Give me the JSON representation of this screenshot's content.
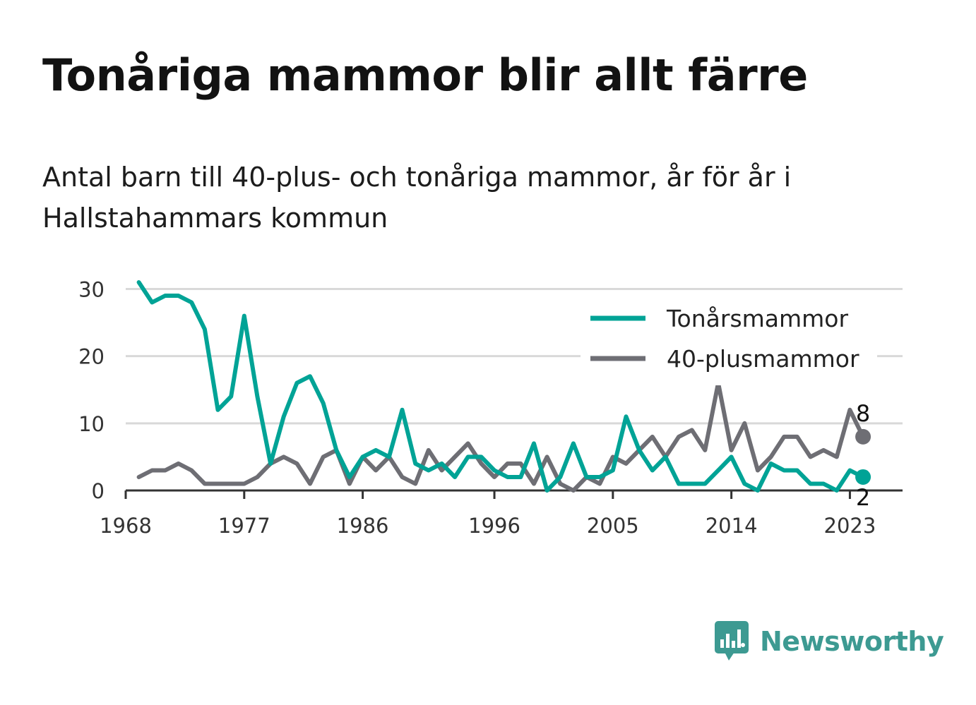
{
  "title": "Tonåriga mammor blir allt färre",
  "subtitle": "Antal barn till 40-plus- och tonåriga mammor, år för år i Hallstahammars kommun",
  "brand": {
    "name": "Newsworthy",
    "icon": "newsworthy-logo-icon",
    "color": "#3d9a92"
  },
  "colors": {
    "teen": "#00a396",
    "forty": "#6e6e74",
    "grid": "#d9d9d9",
    "axis": "#333333"
  },
  "chart_data": {
    "type": "line",
    "xlabel": "",
    "ylabel": "",
    "x": [
      1969,
      1970,
      1971,
      1972,
      1973,
      1974,
      1975,
      1976,
      1977,
      1978,
      1979,
      1980,
      1981,
      1982,
      1983,
      1984,
      1985,
      1986,
      1987,
      1988,
      1989,
      1990,
      1991,
      1992,
      1993,
      1994,
      1995,
      1996,
      1997,
      1998,
      1999,
      2000,
      2001,
      2002,
      2003,
      2004,
      2005,
      2006,
      2007,
      2008,
      2009,
      2010,
      2011,
      2012,
      2013,
      2014,
      2015,
      2016,
      2017,
      2018,
      2019,
      2020,
      2021,
      2022,
      2023,
      2024
    ],
    "xticks": [
      "1968",
      "1977",
      "1986",
      "1996",
      "2005",
      "2014",
      "2023"
    ],
    "xtick_values": [
      1968,
      1977,
      1986,
      1996,
      2005,
      2014,
      2023
    ],
    "xlim": [
      1968,
      2027
    ],
    "yticks": [
      "0",
      "10",
      "20",
      "30"
    ],
    "ytick_values": [
      0,
      10,
      20,
      30
    ],
    "ylim": [
      0,
      31
    ],
    "grid": true,
    "legend_position": "top-right",
    "series": [
      {
        "name": "Tonårsmammor",
        "color": "#00a396",
        "values": [
          31,
          28,
          29,
          29,
          28,
          24,
          12,
          14,
          26,
          14,
          4,
          11,
          16,
          17,
          13,
          6,
          2,
          5,
          6,
          5,
          12,
          4,
          3,
          4,
          2,
          5,
          5,
          3,
          2,
          2,
          7,
          0,
          2,
          7,
          2,
          2,
          3,
          11,
          6,
          3,
          5,
          1,
          1,
          1,
          3,
          5,
          1,
          0,
          4,
          3,
          3,
          1,
          1,
          0,
          3,
          2
        ],
        "end_label": "2"
      },
      {
        "name": "40-plusmammor",
        "color": "#6e6e74",
        "values": [
          2,
          3,
          3,
          4,
          3,
          1,
          1,
          1,
          1,
          2,
          4,
          5,
          4,
          1,
          5,
          6,
          1,
          5,
          3,
          5,
          2,
          1,
          6,
          3,
          5,
          7,
          4,
          2,
          4,
          4,
          1,
          5,
          1,
          0,
          2,
          1,
          5,
          4,
          6,
          8,
          5,
          8,
          9,
          6,
          16,
          6,
          10,
          3,
          5,
          8,
          8,
          5,
          6,
          5,
          12,
          8
        ],
        "end_label": "8"
      }
    ]
  }
}
